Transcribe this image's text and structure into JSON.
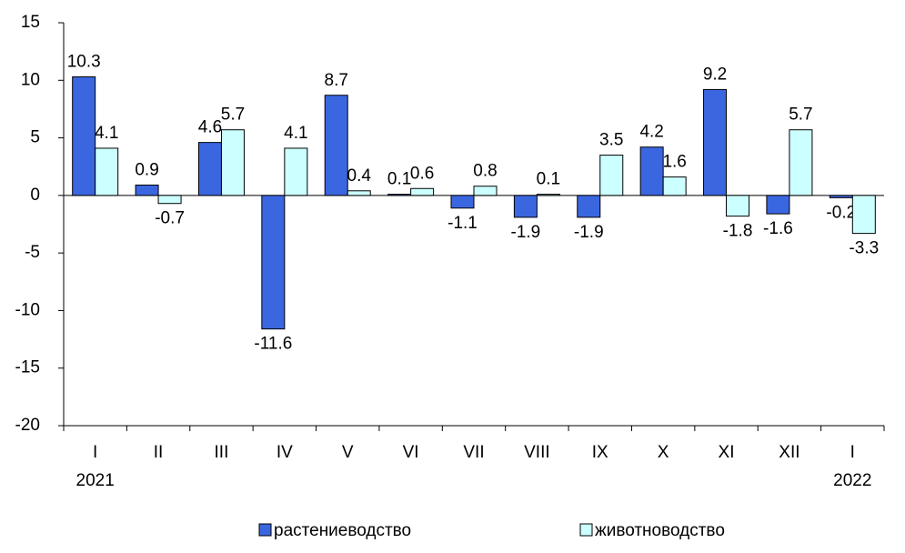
{
  "chart_data": {
    "type": "bar",
    "categories": [
      [
        "I",
        "2021"
      ],
      [
        "II"
      ],
      [
        "III"
      ],
      [
        "IV"
      ],
      [
        "V"
      ],
      [
        "VI"
      ],
      [
        "VII"
      ],
      [
        "VIII"
      ],
      [
        "IX"
      ],
      [
        "X"
      ],
      [
        "XI"
      ],
      [
        "XII"
      ],
      [
        "I",
        "2022"
      ]
    ],
    "series": [
      {
        "name": "растениеводство",
        "color": "#3a66e0",
        "values": [
          10.3,
          0.9,
          4.6,
          -11.6,
          8.7,
          0.1,
          -1.1,
          -1.9,
          -1.9,
          4.2,
          9.2,
          -1.6,
          -0.2
        ]
      },
      {
        "name": "животноводство",
        "color": "#ccffff",
        "values": [
          4.1,
          -0.7,
          5.7,
          4.1,
          0.4,
          0.6,
          0.8,
          0.1,
          3.5,
          1.6,
          -1.8,
          5.7,
          -3.3
        ]
      }
    ],
    "ylim": [
      -20,
      15
    ],
    "yticks": [
      15,
      10,
      5,
      0,
      -5,
      -10,
      -15,
      -20
    ]
  }
}
